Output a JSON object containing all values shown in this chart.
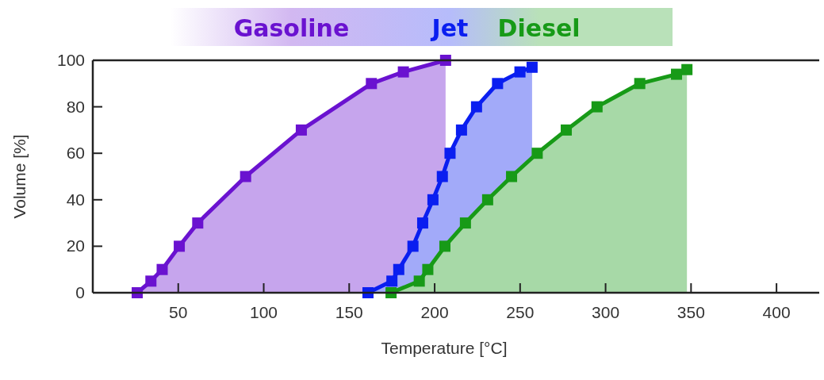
{
  "chart_data": {
    "type": "area",
    "xlabel": "Temperature [°C]",
    "ylabel": "Volume [%]",
    "xlim": [
      0,
      425
    ],
    "xticks": [
      50,
      100,
      150,
      200,
      250,
      300,
      350,
      400
    ],
    "ylim": [
      0,
      100
    ],
    "yticks": [
      0,
      20,
      40,
      60,
      80,
      100
    ],
    "grid": false,
    "legend": "top",
    "marker": "square",
    "line_style": "solid",
    "series": [
      {
        "name": "Gasoline",
        "color": "#6a12d0",
        "x": [
          26,
          34,
          40.6,
          50.6,
          61.4,
          89.4,
          122,
          163,
          181.7,
          206.4
        ],
        "values": [
          0,
          5,
          10,
          20,
          30,
          50,
          70,
          90,
          95,
          100
        ]
      },
      {
        "name": "Jet",
        "color": "#0a1ef0",
        "x": [
          161,
          175,
          179,
          187.3,
          193,
          199,
          204.5,
          209,
          215.7,
          224.5,
          236.8,
          249.9,
          257
        ],
        "values": [
          0,
          5,
          10,
          20,
          30,
          40,
          50,
          60,
          70,
          80,
          90,
          95,
          97
        ]
      },
      {
        "name": "Diesel",
        "color": "#179a17",
        "x": [
          174.5,
          191,
          196,
          206,
          218,
          231,
          245,
          260,
          277,
          295,
          320,
          341.5,
          347.6
        ],
        "values": [
          0,
          5,
          10,
          20,
          30,
          40,
          50,
          60,
          70,
          80,
          90,
          94,
          96
        ]
      }
    ]
  }
}
